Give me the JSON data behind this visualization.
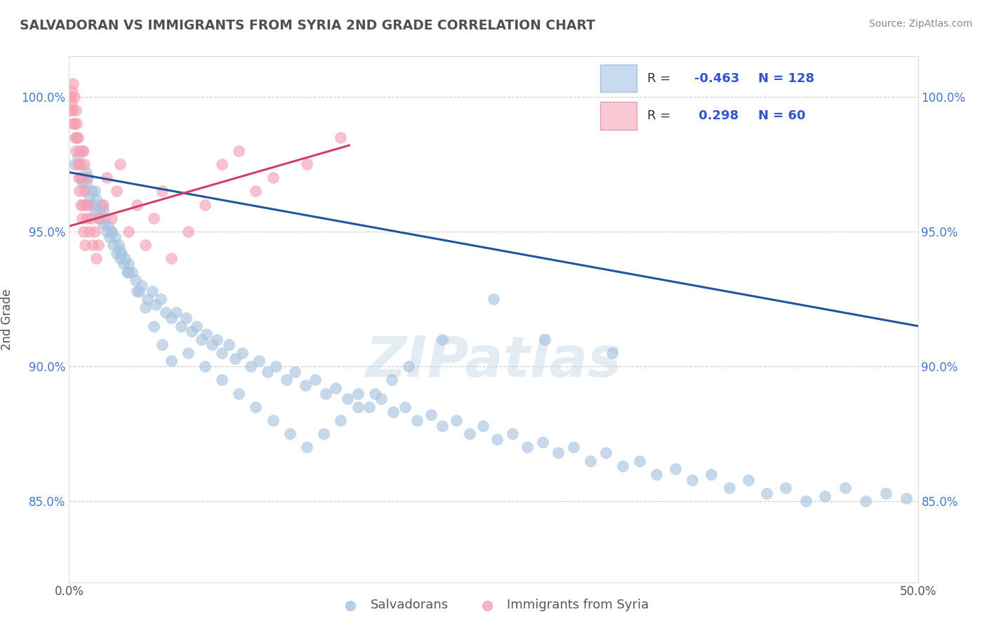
{
  "title": "SALVADORAN VS IMMIGRANTS FROM SYRIA 2ND GRADE CORRELATION CHART",
  "source_text": "Source: ZipAtlas.com",
  "ylabel": "2nd Grade",
  "xlim": [
    0.0,
    50.0
  ],
  "ylim": [
    82.0,
    101.5
  ],
  "yticks": [
    85.0,
    90.0,
    95.0,
    100.0
  ],
  "yticklabels": [
    "85.0%",
    "90.0%",
    "95.0%",
    "100.0%"
  ],
  "blue_R": -0.463,
  "blue_N": 128,
  "pink_R": 0.298,
  "pink_N": 60,
  "blue_color": "#a8c4e0",
  "pink_color": "#f4a0b4",
  "blue_line_color": "#2255a0",
  "pink_line_color": "#d04060",
  "legend_blue_label": "Salvadorans",
  "legend_pink_label": "Immigrants from Syria",
  "watermark": "ZIPatlas",
  "blue_scatter_x": [
    0.3,
    0.5,
    0.7,
    0.8,
    1.0,
    1.1,
    1.2,
    1.3,
    1.4,
    1.5,
    1.6,
    1.7,
    1.8,
    1.9,
    2.0,
    2.1,
    2.2,
    2.3,
    2.4,
    2.5,
    2.6,
    2.7,
    2.8,
    2.9,
    3.0,
    3.1,
    3.2,
    3.3,
    3.4,
    3.5,
    3.7,
    3.9,
    4.1,
    4.3,
    4.6,
    4.9,
    5.1,
    5.4,
    5.7,
    6.0,
    6.3,
    6.6,
    6.9,
    7.2,
    7.5,
    7.8,
    8.1,
    8.4,
    8.7,
    9.0,
    9.4,
    9.8,
    10.2,
    10.7,
    11.2,
    11.7,
    12.2,
    12.8,
    13.3,
    13.9,
    14.5,
    15.1,
    15.7,
    16.4,
    17.0,
    17.7,
    18.4,
    19.1,
    19.8,
    20.5,
    21.3,
    22.0,
    22.8,
    23.6,
    24.4,
    25.2,
    26.1,
    27.0,
    27.9,
    28.8,
    29.7,
    30.7,
    31.6,
    32.6,
    33.6,
    34.6,
    35.7,
    36.7,
    37.8,
    38.9,
    40.0,
    41.1,
    42.2,
    43.4,
    44.5,
    45.7,
    46.9,
    48.1,
    49.3,
    1.0,
    1.5,
    2.0,
    2.5,
    3.0,
    3.5,
    4.0,
    4.5,
    5.0,
    5.5,
    6.0,
    7.0,
    8.0,
    9.0,
    10.0,
    11.0,
    12.0,
    13.0,
    14.0,
    15.0,
    16.0,
    17.0,
    18.0,
    19.0,
    20.0,
    22.0,
    25.0,
    28.0,
    32.0
  ],
  "blue_scatter_y": [
    97.5,
    97.8,
    97.0,
    96.8,
    96.8,
    97.0,
    96.3,
    96.5,
    96.0,
    95.8,
    96.2,
    95.5,
    95.8,
    96.0,
    95.3,
    95.5,
    95.0,
    95.2,
    94.8,
    95.0,
    94.5,
    94.8,
    94.2,
    94.5,
    94.0,
    94.2,
    93.8,
    94.0,
    93.5,
    93.8,
    93.5,
    93.2,
    92.8,
    93.0,
    92.5,
    92.8,
    92.3,
    92.5,
    92.0,
    91.8,
    92.0,
    91.5,
    91.8,
    91.3,
    91.5,
    91.0,
    91.2,
    90.8,
    91.0,
    90.5,
    90.8,
    90.3,
    90.5,
    90.0,
    90.2,
    89.8,
    90.0,
    89.5,
    89.8,
    89.3,
    89.5,
    89.0,
    89.2,
    88.8,
    89.0,
    88.5,
    88.8,
    88.3,
    88.5,
    88.0,
    88.2,
    87.8,
    88.0,
    87.5,
    87.8,
    87.3,
    87.5,
    87.0,
    87.2,
    86.8,
    87.0,
    86.5,
    86.8,
    86.3,
    86.5,
    86.0,
    86.2,
    85.8,
    86.0,
    85.5,
    85.8,
    85.3,
    85.5,
    85.0,
    85.2,
    85.5,
    85.0,
    85.3,
    85.1,
    97.2,
    96.5,
    95.8,
    95.0,
    94.3,
    93.5,
    92.8,
    92.2,
    91.5,
    90.8,
    90.2,
    90.5,
    90.0,
    89.5,
    89.0,
    88.5,
    88.0,
    87.5,
    87.0,
    87.5,
    88.0,
    88.5,
    89.0,
    89.5,
    90.0,
    91.0,
    92.5,
    91.0,
    90.5
  ],
  "pink_scatter_x": [
    0.1,
    0.15,
    0.2,
    0.2,
    0.25,
    0.3,
    0.3,
    0.35,
    0.4,
    0.4,
    0.45,
    0.5,
    0.5,
    0.55,
    0.6,
    0.6,
    0.65,
    0.7,
    0.7,
    0.75,
    0.8,
    0.8,
    0.85,
    0.9,
    0.9,
    0.95,
    1.0,
    1.0,
    1.05,
    1.1,
    1.2,
    1.3,
    1.4,
    1.5,
    1.6,
    1.7,
    1.8,
    2.0,
    2.2,
    2.5,
    2.8,
    3.0,
    3.5,
    4.0,
    4.5,
    5.0,
    5.5,
    6.0,
    7.0,
    8.0,
    9.0,
    10.0,
    11.0,
    12.0,
    14.0,
    16.0,
    0.12,
    0.22,
    0.42,
    0.82
  ],
  "pink_scatter_y": [
    100.0,
    99.8,
    100.2,
    99.5,
    100.5,
    99.0,
    100.0,
    98.5,
    99.5,
    98.0,
    99.0,
    97.5,
    98.5,
    97.0,
    98.0,
    96.5,
    97.5,
    96.0,
    97.0,
    95.5,
    96.0,
    98.0,
    95.0,
    96.5,
    97.5,
    94.5,
    96.0,
    97.0,
    95.5,
    96.0,
    95.0,
    95.5,
    94.5,
    95.0,
    94.0,
    94.5,
    95.5,
    96.0,
    97.0,
    95.5,
    96.5,
    97.5,
    95.0,
    96.0,
    94.5,
    95.5,
    96.5,
    94.0,
    95.0,
    96.0,
    97.5,
    98.0,
    96.5,
    97.0,
    97.5,
    98.5,
    99.5,
    99.0,
    98.5,
    98.0
  ],
  "blue_trend_x": [
    0.0,
    50.0
  ],
  "blue_trend_y": [
    97.2,
    91.5
  ],
  "pink_trend_x": [
    0.0,
    16.5
  ],
  "pink_trend_y": [
    95.2,
    98.2
  ],
  "background_color": "#ffffff",
  "grid_color": "#cccccc",
  "title_color": "#505050",
  "label_color": "#4477cc",
  "text_color": "#555555"
}
